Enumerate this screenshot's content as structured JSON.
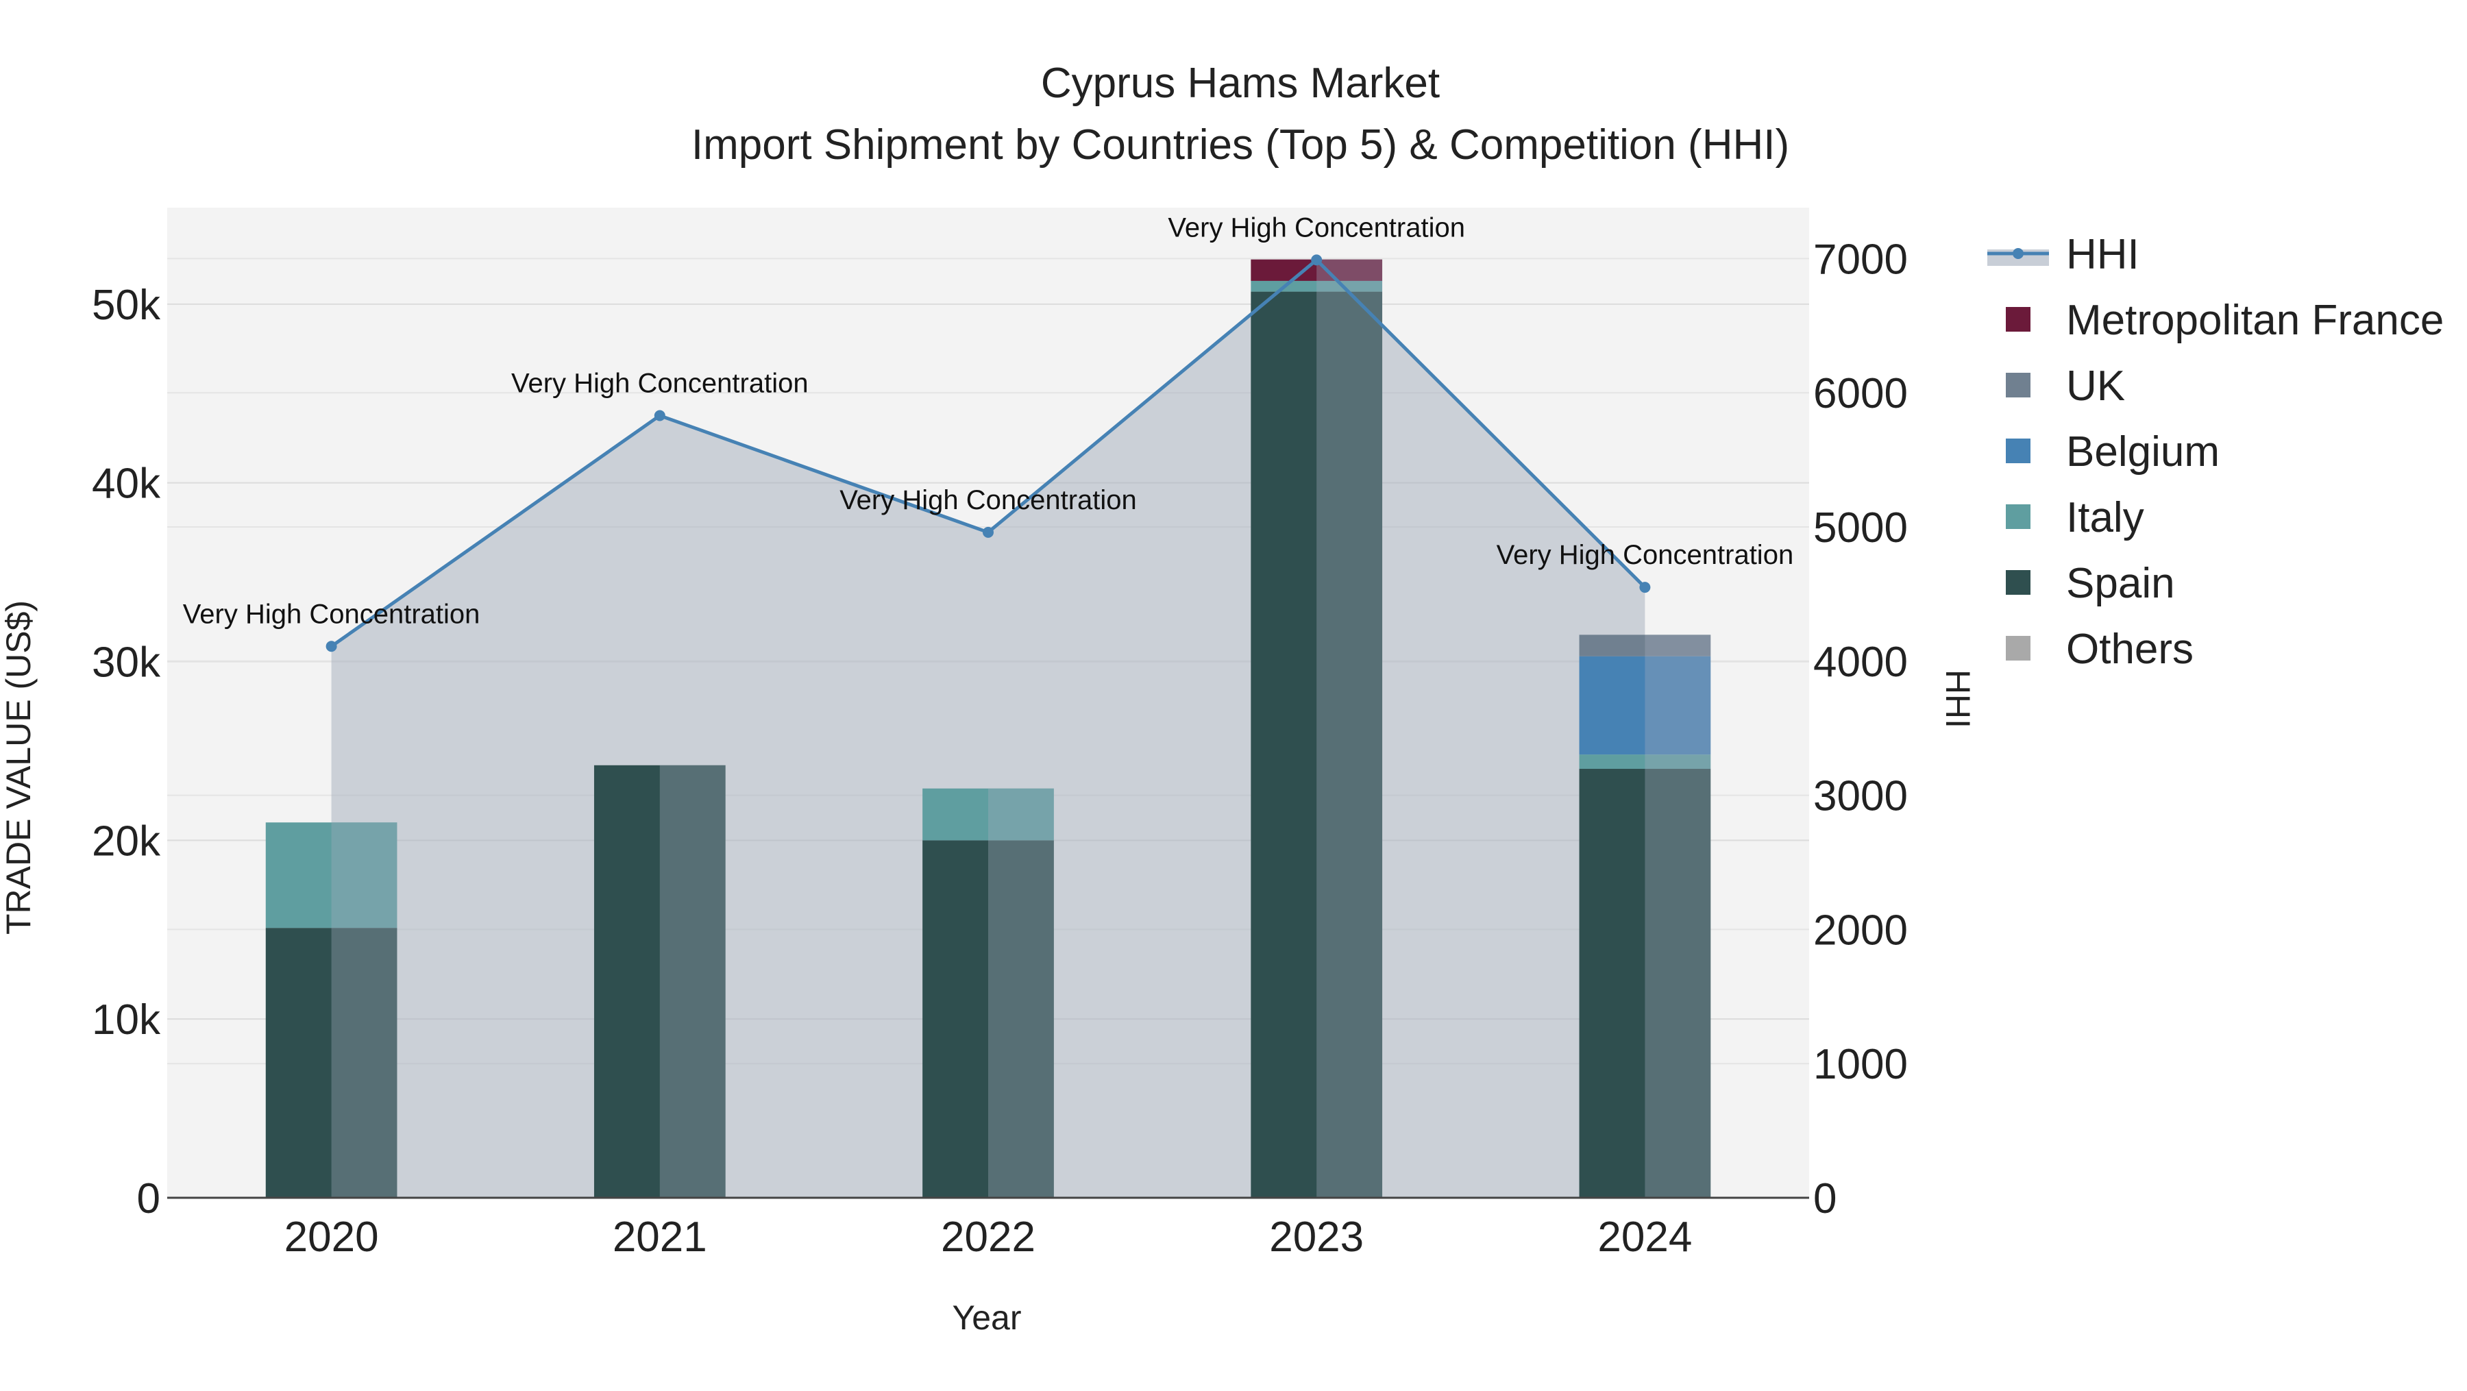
{
  "chart_data": {
    "type": "bar",
    "title": "Cyprus Hams Market",
    "subtitle": "Import Shipment by Countries (Top 5) & Competition (HHI)",
    "xlabel": "Year",
    "ylabel": "TRADE VALUE (US$)",
    "y2label": "HHI",
    "categories": [
      "2020",
      "2021",
      "2022",
      "2023",
      "2024"
    ],
    "ylim": [
      0,
      55400
    ],
    "y2lim": [
      0,
      7380
    ],
    "yticks": [
      0,
      10000,
      20000,
      30000,
      40000,
      50000
    ],
    "ytick_labels": [
      "0",
      "10k",
      "20k",
      "30k",
      "40k",
      "50k"
    ],
    "y2ticks": [
      0,
      1000,
      2000,
      3000,
      4000,
      5000,
      6000,
      7000
    ],
    "y2tick_labels": [
      "0",
      "1000",
      "2000",
      "3000",
      "4000",
      "5000",
      "6000",
      "7000"
    ],
    "grid": true,
    "legend_position": "right",
    "stacks": [
      {
        "name": "Spain",
        "color": "#2f4f4f",
        "values": [
          15100,
          24200,
          20000,
          50700,
          24000
        ]
      },
      {
        "name": "Italy",
        "color": "#5f9ea0",
        "values": [
          5900,
          0,
          2900,
          600,
          800
        ]
      },
      {
        "name": "Belgium",
        "color": "#4682b4",
        "values": [
          0,
          0,
          0,
          0,
          5500
        ]
      },
      {
        "name": "UK",
        "color": "#708090",
        "values": [
          0,
          0,
          0,
          0,
          1200
        ]
      },
      {
        "name": "Metropolitan France",
        "color": "#6b1a3a",
        "values": [
          0,
          0,
          0,
          1200,
          0
        ]
      },
      {
        "name": "Others",
        "color": "#a9a9a9",
        "values": [
          0,
          0,
          0,
          0,
          0
        ]
      }
    ],
    "hhi": {
      "name": "HHI",
      "color": "#4682b4",
      "area_color": "#a4adbc",
      "values": [
        4110,
        5830,
        4960,
        6990,
        4550
      ],
      "annotations": [
        "Very High Concentration",
        "Very High Concentration",
        "Very High Concentration",
        "Very High Concentration",
        "Very High Concentration"
      ]
    },
    "legend": [
      "HHI",
      "Metropolitan France",
      "UK",
      "Belgium",
      "Italy",
      "Spain",
      "Others"
    ]
  }
}
